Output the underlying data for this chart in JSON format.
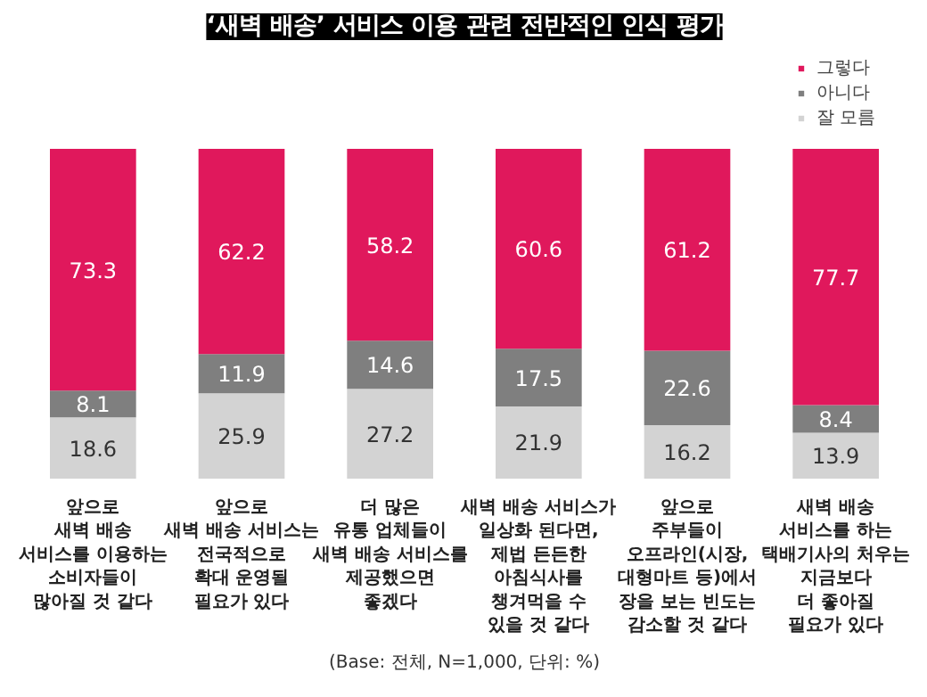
{
  "chart_data": {
    "type": "bar",
    "stacked": true,
    "title": "‘새벽 배송’ 서비스 이용 관련 전반적인 인식 평가",
    "categories": [
      "앞으로\n새벽 배송\n서비스를 이용하는\n소비자들이\n많아질 것 같다",
      "앞으로\n새벽 배송 서비스는\n전국적으로\n확대 운영될\n필요가 있다",
      "더 많은\n유통 업체들이\n새벽 배송 서비스를\n제공했으면\n좋겠다",
      "새벽 배송 서비스가\n일상화 된다면,\n제법 든든한\n아침식사를\n챙겨먹을 수\n있을 것 같다",
      "앞으로\n주부들이\n오프라인(시장,\n대형마트 등)에서\n장을 보는 빈도는\n감소할 것 같다",
      "새벽 배송\n서비스를 하는\n택배기사의 처우는\n지금보다\n더 좋아질\n필요가 있다"
    ],
    "series": [
      {
        "name": "잘 모름",
        "color": "#d3d3d3",
        "values": [
          18.6,
          25.9,
          27.2,
          21.9,
          16.2,
          13.9
        ]
      },
      {
        "name": "아니다",
        "color": "#7f7f7f",
        "values": [
          8.1,
          11.9,
          14.6,
          17.5,
          22.6,
          8.4
        ]
      },
      {
        "name": "그렇다",
        "color": "#e0185c",
        "values": [
          73.3,
          62.2,
          58.2,
          60.6,
          61.2,
          77.7
        ]
      }
    ],
    "ylim": [
      0,
      100
    ],
    "tick_labels": "x",
    "data_labels": true,
    "legend": "top right",
    "grid": false,
    "annotations": [
      "(Base: 전체, N=1,000, 단위: %)"
    ]
  }
}
